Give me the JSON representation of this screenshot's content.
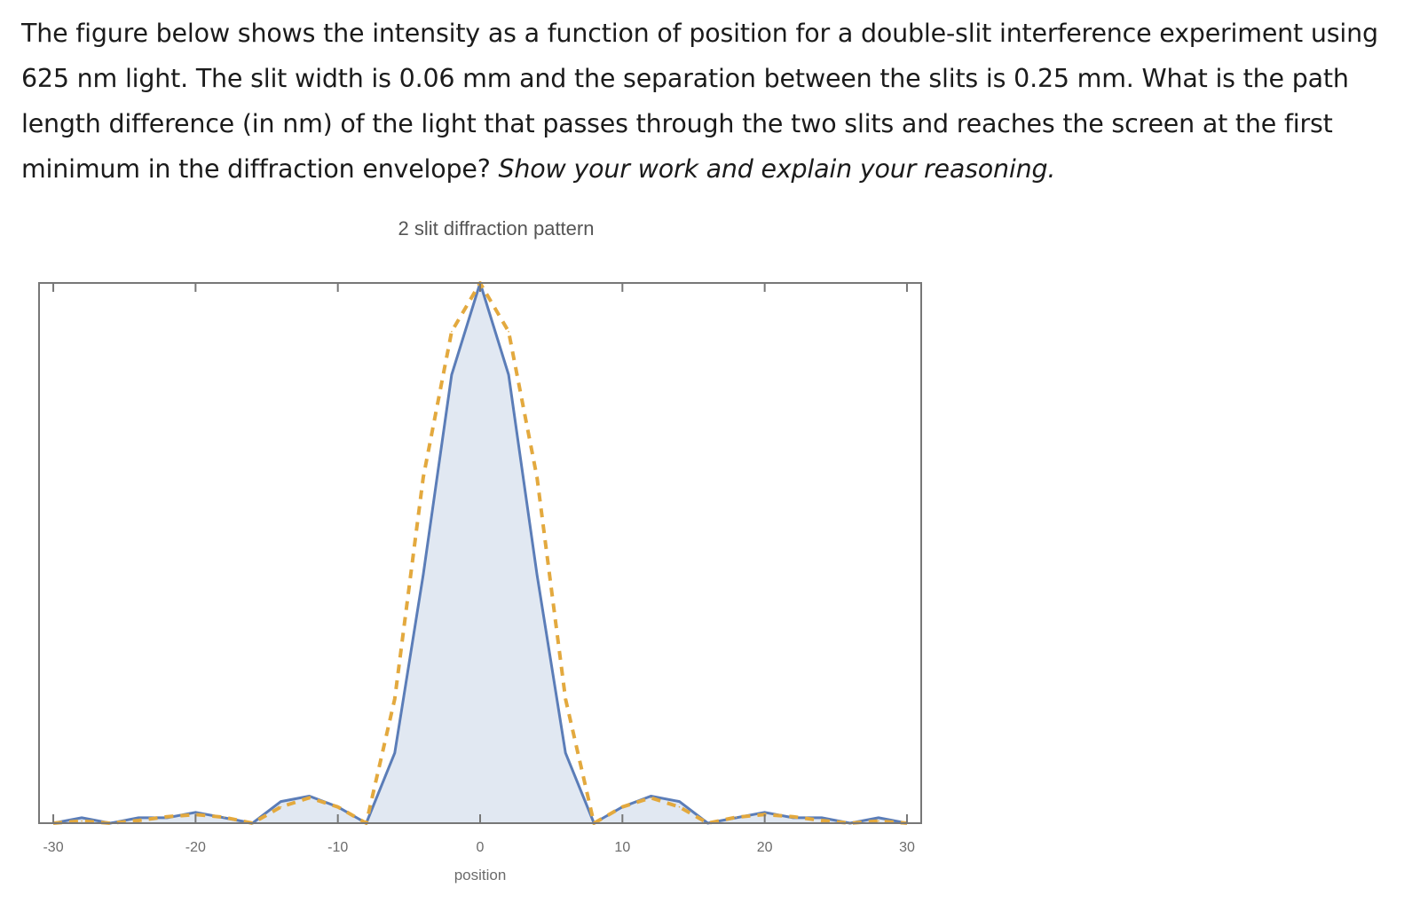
{
  "question": {
    "text": "The figure below shows the intensity as a function of position for a double-slit interference experiment using 625 nm light. The slit width is 0.06 mm and the separation between the slits is 0.25 mm. What is the path length difference (in nm) of the light that passes through the two slits and reaches the screen at the first minimum in the diffraction envelope?",
    "instruction": "Show your work and explain your reasoning."
  },
  "chart_data": {
    "type": "line",
    "title": "2 slit diffraction pattern",
    "xlabel": "position",
    "ylabel": "",
    "xlim": [
      -31,
      31
    ],
    "ylim": [
      0,
      1
    ],
    "xticks": [
      -30,
      -20,
      -10,
      0,
      10,
      20,
      30
    ],
    "xtick_labels": [
      "-30",
      "-20",
      "-10",
      "0",
      "10",
      "20",
      "30"
    ],
    "grid": false,
    "series": [
      {
        "role": "intensity",
        "style": "solid",
        "fill": true,
        "color": "#5b7db8",
        "x": [
          -30,
          -28,
          -26,
          -24,
          -22,
          -20,
          -18,
          -16,
          -14,
          -12,
          -10,
          -8,
          -6,
          -4,
          -2,
          0,
          2,
          4,
          6,
          8,
          10,
          12,
          14,
          16,
          18,
          20,
          22,
          24,
          26,
          28,
          30
        ],
        "y": [
          0.0,
          0.01,
          0.0,
          0.01,
          0.01,
          0.02,
          0.01,
          0.0,
          0.04,
          0.05,
          0.03,
          0.0,
          0.13,
          0.46,
          0.83,
          1.0,
          0.83,
          0.46,
          0.13,
          0.0,
          0.03,
          0.05,
          0.04,
          0.0,
          0.01,
          0.02,
          0.01,
          0.01,
          0.0,
          0.01,
          0.0
        ]
      },
      {
        "role": "envelope",
        "style": "dashed",
        "color": "#e3a93e",
        "x": [
          -30,
          -28,
          -26,
          -24,
          -22,
          -20,
          -18,
          -16,
          -14,
          -12,
          -10,
          -8,
          -6,
          -4,
          -2,
          0,
          2,
          4,
          6,
          8,
          10,
          12,
          14,
          16,
          18,
          20,
          22,
          24,
          26,
          28,
          30
        ],
        "y": [
          0.0,
          0.004,
          0.0,
          0.005,
          0.012,
          0.016,
          0.011,
          0.0,
          0.03,
          0.047,
          0.03,
          0.0,
          0.23,
          0.64,
          0.91,
          1.0,
          0.91,
          0.64,
          0.23,
          0.0,
          0.03,
          0.047,
          0.03,
          0.0,
          0.011,
          0.016,
          0.012,
          0.005,
          0.0,
          0.004,
          0.0
        ]
      }
    ]
  }
}
